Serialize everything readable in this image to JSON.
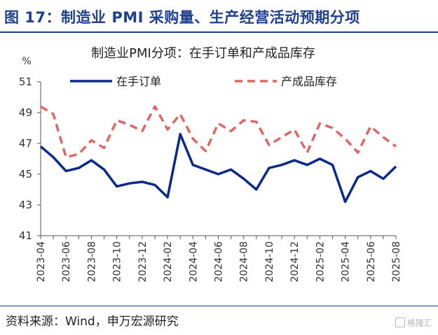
{
  "header": {
    "title": "图 17：制造业 PMI 采购量、生产经营活动预期分项"
  },
  "footer": {
    "source": "资料来源：Wind，申万宏源研究",
    "watermark": "格隆汇"
  },
  "colors": {
    "brand": "#1f3f8f",
    "series_orders": "#0a2a8a",
    "series_inventory": "#e06666"
  },
  "chart_data": {
    "type": "line",
    "title": "制造业PMI分项：在手订单和产成品库存",
    "ylabel": "%",
    "ylim": [
      41,
      51
    ],
    "yticks": [
      41,
      43,
      45,
      47,
      49,
      51
    ],
    "grid": false,
    "legend": "top",
    "x": [
      "2023-04",
      "2023-05",
      "2023-06",
      "2023-07",
      "2023-08",
      "2023-09",
      "2023-10",
      "2023-11",
      "2023-12",
      "2024-01",
      "2024-02",
      "2024-03",
      "2024-04",
      "2024-05",
      "2024-06",
      "2024-07",
      "2024-08",
      "2024-09",
      "2024-10",
      "2024-11",
      "2024-12",
      "2025-01",
      "2025-02",
      "2025-03",
      "2025-04",
      "2025-05",
      "2025-06",
      "2025-07",
      "2025-08"
    ],
    "xtick_labels": [
      "2023-04",
      "2023-06",
      "2023-08",
      "2023-10",
      "2023-12",
      "2024-02",
      "2024-04",
      "2024-06",
      "2024-08",
      "2024-10",
      "2024-12",
      "2025-02",
      "2025-04",
      "2025-06",
      "2025-08"
    ],
    "series": [
      {
        "name": "在手订单",
        "style": "solid",
        "values": [
          46.8,
          46.1,
          45.2,
          45.4,
          45.9,
          45.3,
          44.2,
          44.4,
          44.5,
          44.3,
          43.5,
          47.6,
          45.6,
          45.3,
          45.0,
          45.3,
          44.7,
          44.0,
          45.4,
          45.6,
          45.9,
          45.6,
          46.0,
          45.6,
          43.2,
          44.8,
          45.2,
          44.7,
          45.5
        ]
      },
      {
        "name": "产成品库存",
        "style": "dashed",
        "values": [
          49.4,
          48.9,
          46.1,
          46.3,
          47.2,
          46.7,
          48.5,
          48.2,
          47.8,
          49.4,
          47.9,
          48.9,
          47.3,
          46.5,
          48.3,
          47.8,
          48.5,
          48.4,
          46.9,
          47.4,
          47.9,
          46.4,
          48.3,
          48.0,
          47.3,
          46.4,
          48.1,
          47.4,
          46.8
        ]
      }
    ]
  }
}
